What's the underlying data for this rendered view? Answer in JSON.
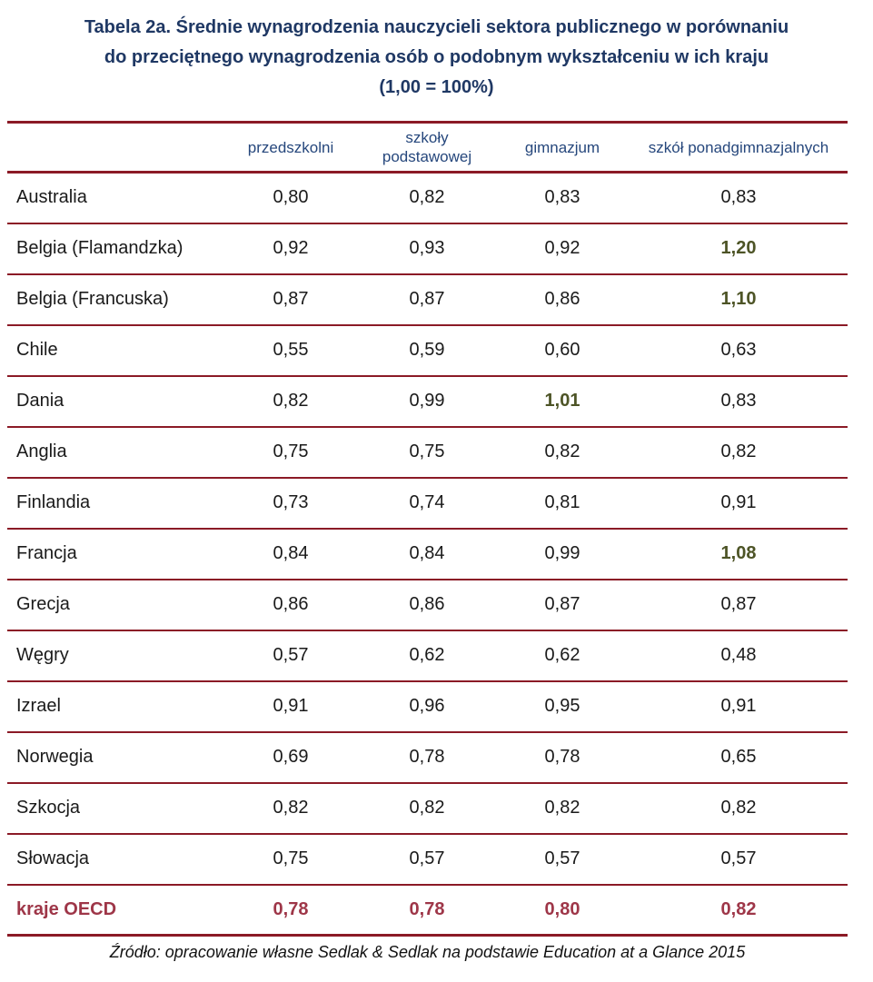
{
  "colors": {
    "title-blue": "#1f3864",
    "header-blue": "#26477c",
    "rule-red": "#8b1a26",
    "above-one-green": "#4d5426",
    "oecd-red": "#9e3648",
    "text-black": "#1a1a1a"
  },
  "chart_data": {
    "type": "table",
    "title": "Tabela 2a. Średnie wynagrodzenia nauczycieli sektora publicznego w porównaniu do przeciętnego wynagrodzenia osób o podobnym wykształceniu w ich kraju (1,00 = 100%)",
    "title_lines": [
      "Tabela 2a. Średnie wynagrodzenia nauczycieli sektora publicznego w porównaniu",
      "do przeciętnego wynagrodzenia osób o podobnym wykształceniu w ich kraju",
      "(1,00 = 100%)"
    ],
    "scale_note": "(1,00 = 100%)",
    "columns": [
      "przedszkolni",
      "szkoły podstawowej",
      "gimnazjum",
      "szkół ponadgimnazjalnych"
    ],
    "rows": [
      {
        "label": "Australia",
        "values": [
          "0,80",
          "0,82",
          "0,83",
          "0,83"
        ],
        "highlight": []
      },
      {
        "label": "Belgia (Flamandzka)",
        "values": [
          "0,92",
          "0,93",
          "0,92",
          "1,20"
        ],
        "highlight": [
          3
        ]
      },
      {
        "label": "Belgia (Francuska)",
        "values": [
          "0,87",
          "0,87",
          "0,86",
          "1,10"
        ],
        "highlight": [
          3
        ]
      },
      {
        "label": "Chile",
        "values": [
          "0,55",
          "0,59",
          "0,60",
          "0,63"
        ],
        "highlight": []
      },
      {
        "label": "Dania",
        "values": [
          "0,82",
          "0,99",
          "1,01",
          "0,83"
        ],
        "highlight": [
          2
        ]
      },
      {
        "label": "Anglia",
        "values": [
          "0,75",
          "0,75",
          "0,82",
          "0,82"
        ],
        "highlight": []
      },
      {
        "label": "Finlandia",
        "values": [
          "0,73",
          "0,74",
          "0,81",
          "0,91"
        ],
        "highlight": []
      },
      {
        "label": "Francja",
        "values": [
          "0,84",
          "0,84",
          "0,99",
          "1,08"
        ],
        "highlight": [
          3
        ]
      },
      {
        "label": "Grecja",
        "values": [
          "0,86",
          "0,86",
          "0,87",
          "0,87"
        ],
        "highlight": []
      },
      {
        "label": "Węgry",
        "values": [
          "0,57",
          "0,62",
          "0,62",
          "0,48"
        ],
        "highlight": []
      },
      {
        "label": "Izrael",
        "values": [
          "0,91",
          "0,96",
          "0,95",
          "0,91"
        ],
        "highlight": []
      },
      {
        "label": "Norwegia",
        "values": [
          "0,69",
          "0,78",
          "0,78",
          "0,65"
        ],
        "highlight": []
      },
      {
        "label": "Szkocja",
        "values": [
          "0,82",
          "0,82",
          "0,82",
          "0,82"
        ],
        "highlight": []
      },
      {
        "label": "Słowacja",
        "values": [
          "0,75",
          "0,57",
          "0,57",
          "0,57"
        ],
        "highlight": []
      },
      {
        "label": "kraje OECD",
        "values": [
          "0,78",
          "0,78",
          "0,80",
          "0,82"
        ],
        "highlight": [],
        "style": "oecd"
      }
    ],
    "source": "Źródło: opracowanie własne Sedlak & Sedlak na podstawie Education at a Glance 2015"
  }
}
